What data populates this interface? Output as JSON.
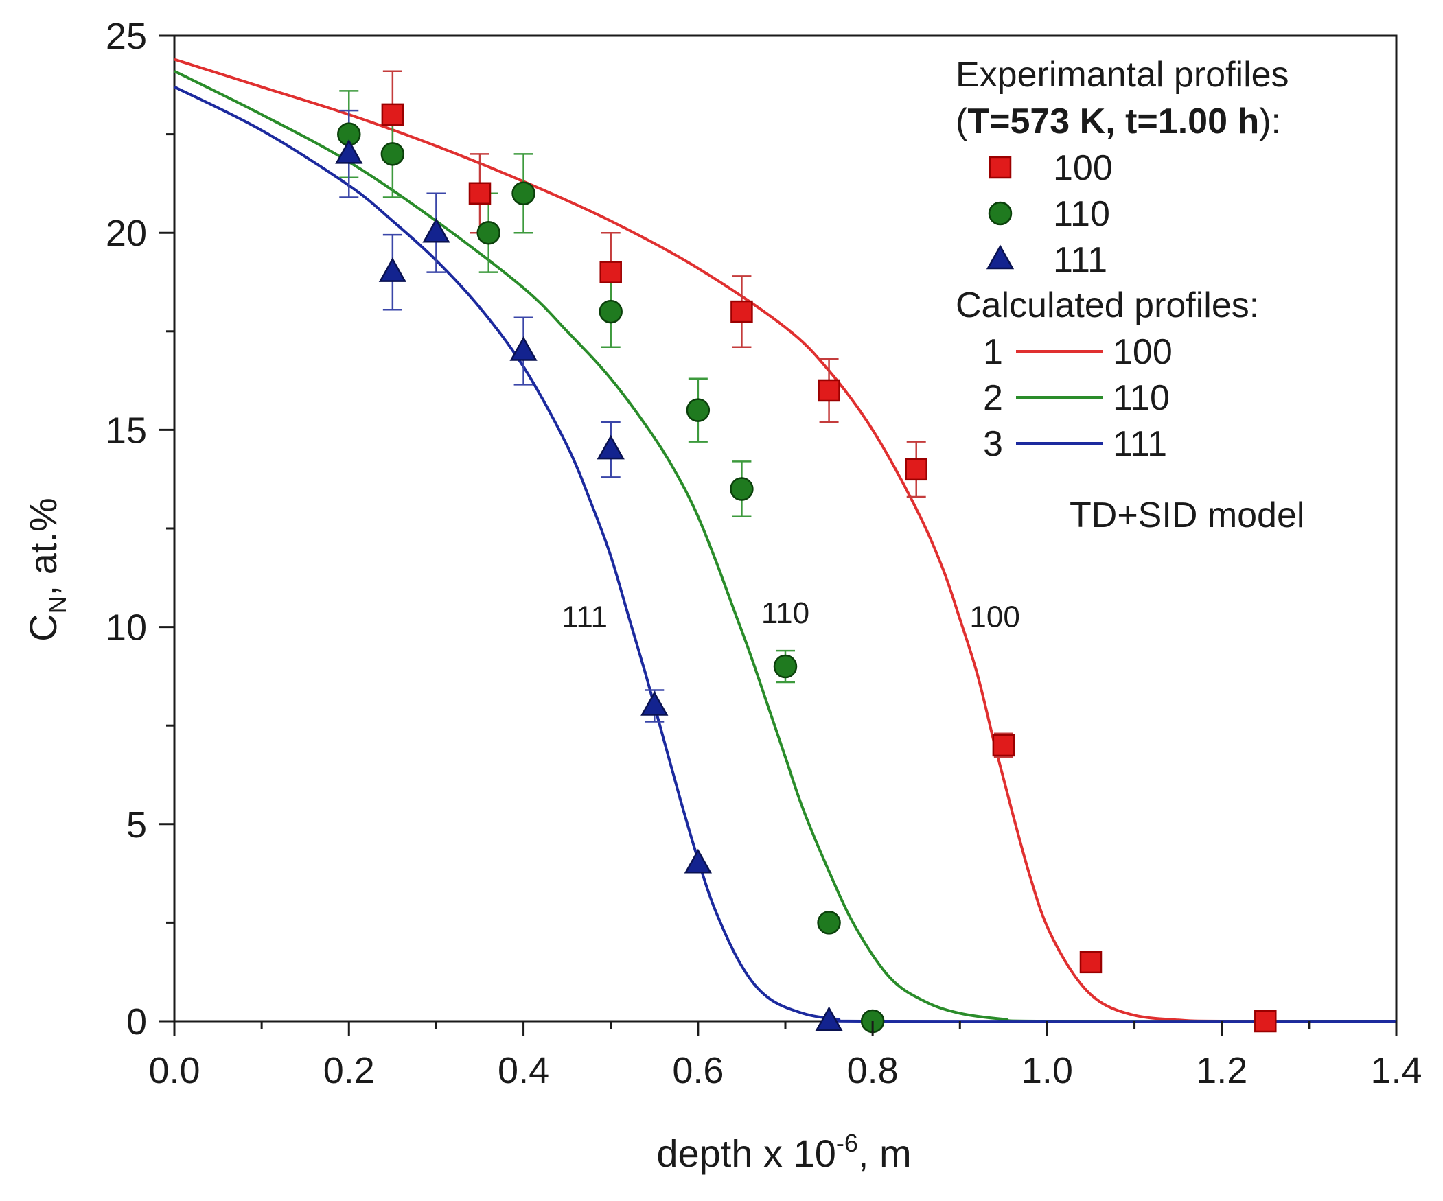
{
  "chart_data": {
    "type": "scatter",
    "title": "",
    "xlabel": {
      "pre": "depth x 10",
      "sup": "-6",
      "post": ", m"
    },
    "ylabel": {
      "pre": "C",
      "sub": "N",
      "post": ", at.%"
    },
    "xlim": [
      0.0,
      1.4
    ],
    "ylim": [
      0,
      25
    ],
    "x_ticks": [
      "0.0",
      "0.2",
      "0.4",
      "0.6",
      "0.8",
      "1.0",
      "1.2",
      "1.4"
    ],
    "y_ticks": [
      "0",
      "5",
      "10",
      "15",
      "20",
      "25"
    ],
    "grid": false,
    "legend_position": "top-right",
    "legend": {
      "exp_title": "Experimantal profiles",
      "exp_cond_open": "(",
      "exp_cond_bold": "T=573 K, t=1.00 h",
      "exp_cond_close": "):",
      "calc_title": "Calculated profiles:",
      "model": "TD+SID model"
    },
    "series": [
      {
        "name": "100",
        "marker": "square",
        "color": "#e01b1b",
        "edge": "#9b0000",
        "err_color": "#c43c3c",
        "x": [
          0.25,
          0.35,
          0.5,
          0.65,
          0.75,
          0.85,
          0.95,
          1.05,
          1.25
        ],
        "y": [
          23.0,
          21.0,
          19.0,
          18.0,
          16.0,
          14.0,
          7.0,
          1.5,
          0.0
        ],
        "err": [
          1.1,
          1.0,
          1.0,
          0.9,
          0.8,
          0.7,
          0.3,
          0.0,
          0.0
        ]
      },
      {
        "name": "110",
        "marker": "circle",
        "color": "#1f7a1f",
        "edge": "#0b400b",
        "err_color": "#3d9a3d",
        "x": [
          0.2,
          0.25,
          0.36,
          0.4,
          0.5,
          0.6,
          0.65,
          0.7,
          0.75,
          0.8
        ],
        "y": [
          22.5,
          22.0,
          20.0,
          21.0,
          18.0,
          15.5,
          13.5,
          9.0,
          2.5,
          0.0
        ],
        "err": [
          1.1,
          1.1,
          1.0,
          1.0,
          0.9,
          0.8,
          0.7,
          0.4,
          0.0,
          0.0
        ]
      },
      {
        "name": "111",
        "marker": "triangle",
        "color": "#13238f",
        "edge": "#0a1250",
        "err_color": "#3a46a8",
        "x": [
          0.2,
          0.25,
          0.3,
          0.4,
          0.5,
          0.55,
          0.6,
          0.75
        ],
        "y": [
          22.0,
          19.0,
          20.0,
          17.0,
          14.5,
          8.0,
          4.0,
          0.0
        ],
        "err": [
          1.1,
          0.95,
          1.0,
          0.85,
          0.7,
          0.4,
          0.0,
          0.0
        ]
      }
    ],
    "fit_curves": [
      {
        "index": "1",
        "name": "100",
        "color": "#e03030",
        "label": "100",
        "x": [
          0.0,
          0.1,
          0.2,
          0.3,
          0.4,
          0.5,
          0.6,
          0.7,
          0.75,
          0.8,
          0.85,
          0.88,
          0.9,
          0.92,
          0.94,
          0.96,
          0.98,
          1.0,
          1.03,
          1.06,
          1.1,
          1.15,
          1.2,
          1.4
        ],
        "y": [
          24.4,
          23.7,
          23.0,
          22.2,
          21.3,
          20.3,
          19.1,
          17.6,
          16.5,
          15.0,
          13.0,
          11.5,
          10.2,
          8.8,
          7.0,
          5.3,
          3.7,
          2.4,
          1.2,
          0.5,
          0.15,
          0.03,
          0.0,
          0.0
        ]
      },
      {
        "index": "2",
        "name": "110",
        "color": "#2a8c2a",
        "label": "110",
        "x": [
          0.0,
          0.1,
          0.2,
          0.3,
          0.4,
          0.45,
          0.5,
          0.55,
          0.58,
          0.6,
          0.62,
          0.64,
          0.66,
          0.68,
          0.7,
          0.72,
          0.75,
          0.78,
          0.82,
          0.86,
          0.9,
          0.95,
          1.0,
          1.4
        ],
        "y": [
          24.1,
          23.0,
          21.8,
          20.3,
          18.6,
          17.5,
          16.3,
          14.8,
          13.7,
          12.8,
          11.7,
          10.5,
          9.3,
          8.0,
          6.7,
          5.4,
          3.8,
          2.4,
          1.1,
          0.5,
          0.2,
          0.05,
          0.0,
          0.0
        ]
      },
      {
        "index": "3",
        "name": "111",
        "color": "#1c2a9e",
        "label": "111",
        "x": [
          0.0,
          0.1,
          0.2,
          0.25,
          0.3,
          0.35,
          0.4,
          0.45,
          0.48,
          0.5,
          0.52,
          0.54,
          0.56,
          0.58,
          0.6,
          0.62,
          0.65,
          0.68,
          0.72,
          0.76,
          0.8,
          1.4
        ],
        "y": [
          23.7,
          22.6,
          21.2,
          20.3,
          19.3,
          18.1,
          16.6,
          14.6,
          13.0,
          11.8,
          10.3,
          8.8,
          7.2,
          5.6,
          4.1,
          2.8,
          1.4,
          0.6,
          0.2,
          0.05,
          0.0,
          0.0
        ]
      }
    ],
    "curve_labels": [
      {
        "text": "111",
        "x": 0.47,
        "y": 10.0
      },
      {
        "text": "110",
        "x": 0.7,
        "y": 10.1
      },
      {
        "text": "100",
        "x": 0.94,
        "y": 10.0
      }
    ]
  }
}
